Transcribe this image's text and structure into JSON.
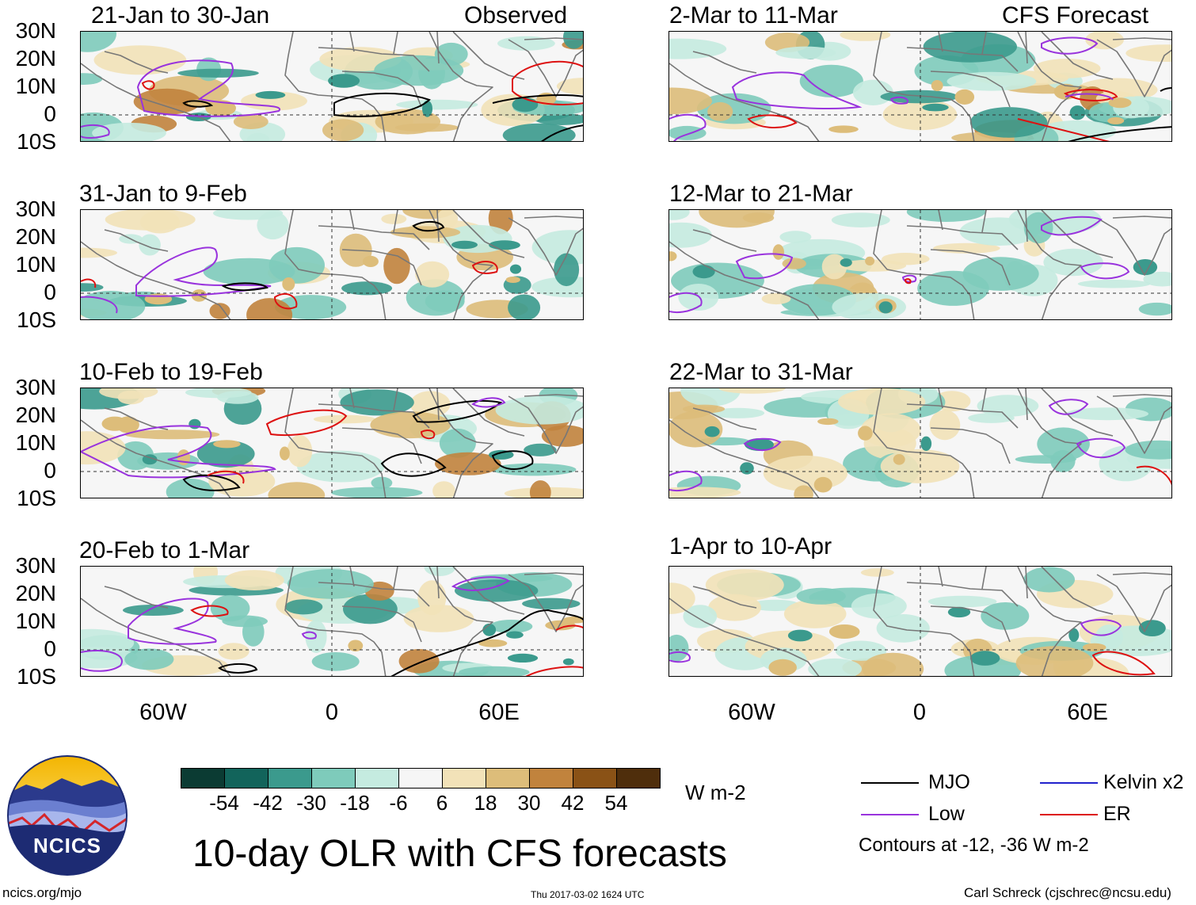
{
  "colors": {
    "mjo": "#000000",
    "low": "#9933dd",
    "kelvin": "#2222cc",
    "er": "#dd1111",
    "land": "#777777"
  },
  "observed_label": "Observed",
  "forecast_label": "CFS Forecast",
  "y_labels": [
    "30N",
    "20N",
    "10N",
    "0",
    "10S"
  ],
  "x_labels": [
    "60W",
    "0",
    "60E"
  ],
  "panels": {
    "left": [
      {
        "title": "21-Jan to 30-Jan"
      },
      {
        "title": "31-Jan to 9-Feb"
      },
      {
        "title": "10-Feb to 19-Feb"
      },
      {
        "title": "20-Feb to 1-Mar"
      }
    ],
    "right": [
      {
        "title": "2-Mar to 11-Mar"
      },
      {
        "title": "12-Mar to 21-Mar"
      },
      {
        "title": "22-Mar to 31-Mar"
      },
      {
        "title": "1-Apr to 10-Apr"
      }
    ]
  },
  "colorbar": {
    "ticks": [
      "-54",
      "-42",
      "-30",
      "-18",
      "-6",
      "6",
      "18",
      "30",
      "42",
      "54"
    ],
    "colors": [
      "#0b3b33",
      "#12645b",
      "#3b9a8d",
      "#7ecbbb",
      "#c5ebe0",
      "#f6f6f6",
      "#f2e2b8",
      "#ddbd7a",
      "#c1833d",
      "#8a5216",
      "#4f2e0c"
    ],
    "units": "W m-2"
  },
  "legend": {
    "mjo": "MJO",
    "low": "Low",
    "kelvin": "Kelvin x2",
    "er": "ER",
    "note": "Contours at -12, -36 W m-2"
  },
  "main_title": "10-day OLR with CFS forecasts",
  "logo_text": "NCICS",
  "site": "ncics.org/mjo",
  "timestamp": "Thu 2017-03-02 1624 UTC",
  "author": "Carl Schreck (cjschrec@ncsu.edu)"
}
